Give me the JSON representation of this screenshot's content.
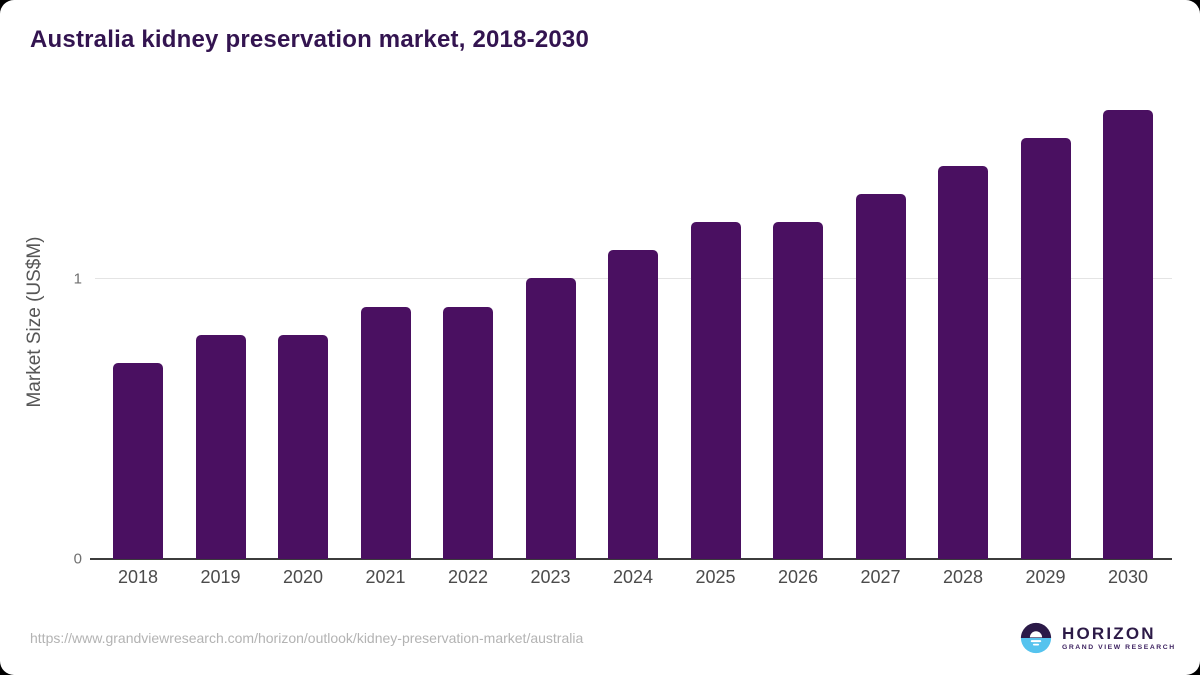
{
  "title": "Australia kidney preservation market, 2018-2030",
  "chart_data": {
    "type": "bar",
    "categories": [
      "2018",
      "2019",
      "2020",
      "2021",
      "2022",
      "2023",
      "2024",
      "2025",
      "2026",
      "2027",
      "2028",
      "2029",
      "2030"
    ],
    "values": [
      0.7,
      0.8,
      0.8,
      0.9,
      0.9,
      1.0,
      1.1,
      1.2,
      1.2,
      1.3,
      1.4,
      1.5,
      1.6
    ],
    "title": "Australia kidney preservation market, 2018-2030",
    "xlabel": "",
    "ylabel": "Market Size (US$M)",
    "ylim": [
      0,
      1.65
    ],
    "yticks": [
      0,
      1
    ],
    "legend": "none",
    "grid": "horizontal line at y=1 only",
    "bar_color": "#4a1061",
    "title_color": "#331450"
  },
  "footer": {
    "source_url": "https://www.grandviewresearch.com/horizon/outlook/kidney-preservation-market/australia",
    "logo": {
      "name": "HORIZON",
      "subtitle": "GRAND VIEW RESEARCH",
      "icon": "sunset-horizon-circle-icon",
      "icon_top_color": "#2b1a48",
      "icon_bottom_color": "#55c3ee"
    }
  }
}
